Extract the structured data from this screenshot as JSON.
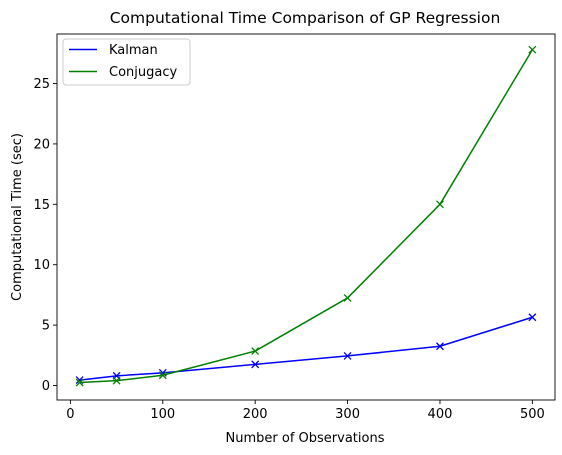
{
  "chart_data": {
    "type": "line",
    "title": "Computational Time Comparison of GP Regression",
    "xlabel": "Number of Observations",
    "ylabel": "Computational Time (sec)",
    "xlim": [
      -14.5,
      524.5
    ],
    "ylim": [
      -1.2,
      29.1
    ],
    "xticks": [
      0,
      100,
      200,
      300,
      400,
      500
    ],
    "yticks": [
      0,
      5,
      10,
      15,
      20,
      25
    ],
    "x": [
      10,
      50,
      100,
      200,
      300,
      400,
      500
    ],
    "marker": "x",
    "grid": false,
    "legend_position": "top-left",
    "series": [
      {
        "name": "Kalman",
        "color": "#0000ff",
        "values": [
          0.45,
          0.8,
          1.05,
          1.75,
          2.45,
          3.25,
          5.65
        ]
      },
      {
        "name": "Conjugacy",
        "color": "#008000",
        "values": [
          0.25,
          0.4,
          0.85,
          2.85,
          7.25,
          15.0,
          27.8
        ]
      }
    ]
  }
}
